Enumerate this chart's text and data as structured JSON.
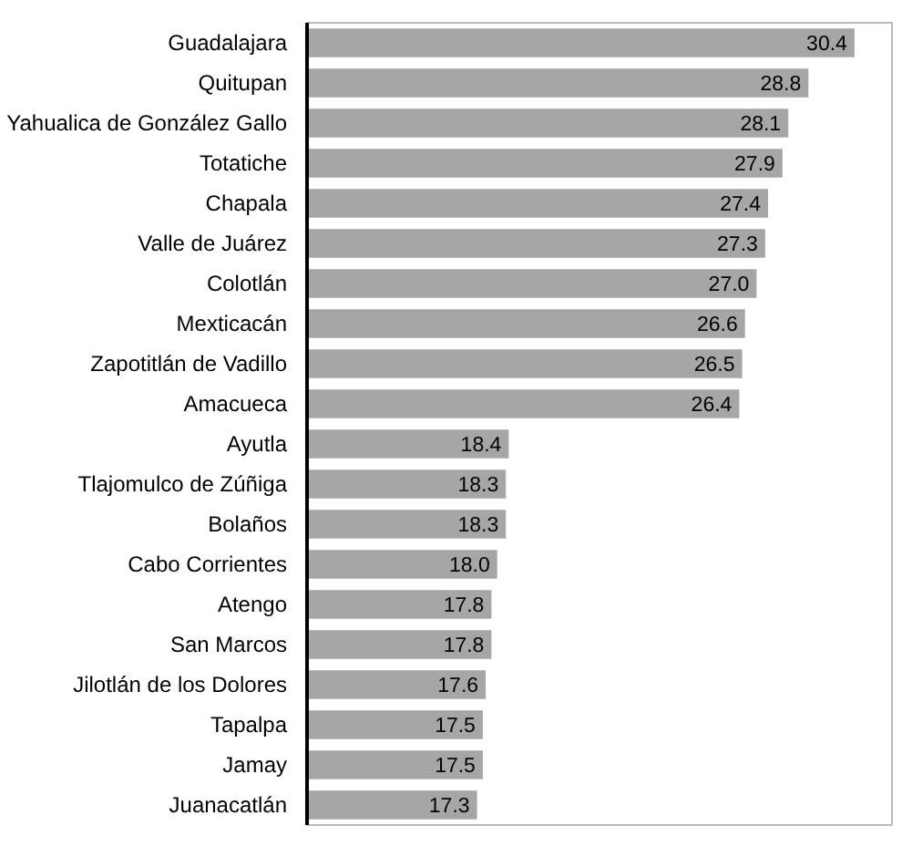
{
  "chart_data": {
    "type": "bar",
    "orientation": "horizontal",
    "categories": [
      "Guadalajara",
      "Quitupan",
      "Yahualica de González Gallo",
      "Totatiche",
      "Chapala",
      "Valle de Juárez",
      "Colotlán",
      "Mexticacán",
      "Zapotitlán de Vadillo",
      "Amacueca",
      "Ayutla",
      "Tlajomulco de Zúñiga",
      "Bolaños",
      "Cabo Corrientes",
      "Atengo",
      "San Marcos",
      "Jilotlán de los Dolores",
      "Tapalpa",
      "Jamay",
      "Juanacatlán"
    ],
    "values": [
      30.4,
      28.8,
      28.1,
      27.9,
      27.4,
      27.3,
      27.0,
      26.6,
      26.5,
      26.4,
      18.4,
      18.3,
      18.3,
      18.0,
      17.8,
      17.8,
      17.6,
      17.5,
      17.5,
      17.3
    ],
    "value_labels": [
      "30.4",
      "28.8",
      "28.1",
      "27.9",
      "27.4",
      "27.3",
      "27.0",
      "26.6",
      "26.5",
      "26.4",
      "18.4",
      "18.3",
      "18.3",
      "18.0",
      "17.8",
      "17.8",
      "17.6",
      "17.5",
      "17.5",
      "17.3"
    ],
    "color": "#a6a6a6",
    "xlim": [
      11.4,
      31.7
    ],
    "grid": false
  }
}
